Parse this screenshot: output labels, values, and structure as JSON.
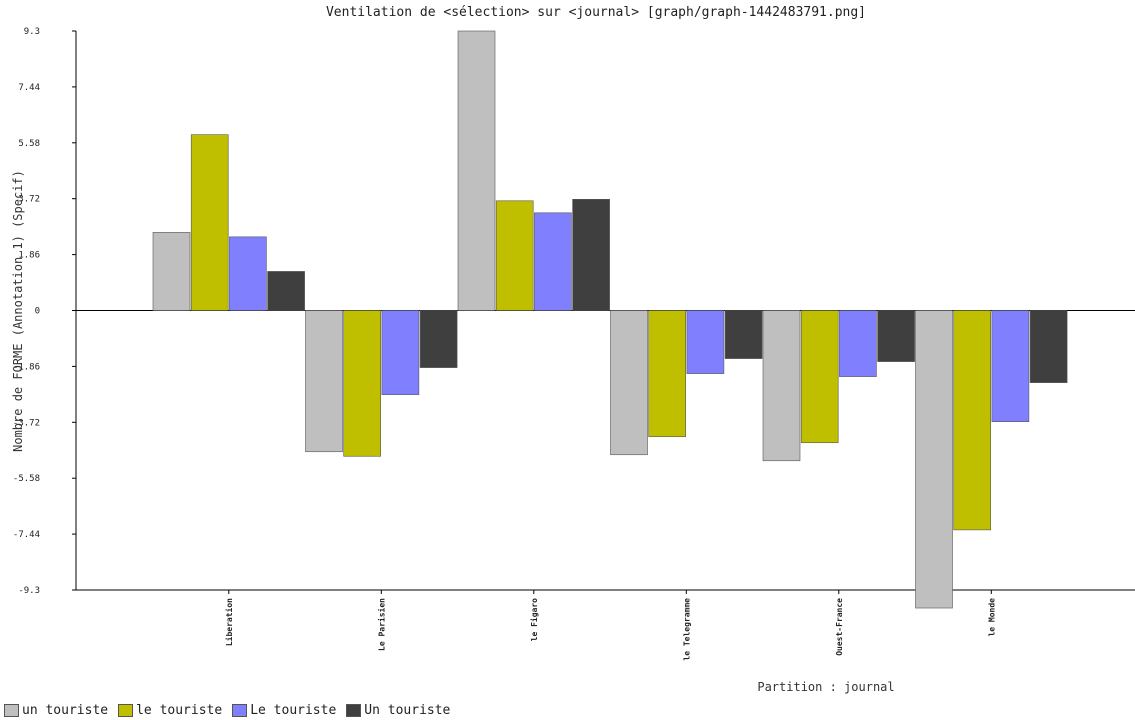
{
  "chart_data": {
    "type": "bar",
    "title": "Ventilation de <sélection> sur <journal> [graph/graph-1442483791.png]",
    "xlabel": "Partition : journal",
    "ylabel": "Nombre de FORME (Annotation 1) (Specif)",
    "ylim": [
      -9.3,
      9.3
    ],
    "yticks": [
      "9.3",
      "7.44",
      "5.58",
      "3.72",
      "1.86",
      "0",
      "-1.86",
      "-3.72",
      "-5.58",
      "-7.44",
      "-9.3"
    ],
    "categories": [
      "Liberation",
      "Le Parisien",
      "le Figaro",
      "le Telegramme",
      "Ouest-France",
      "le Monde"
    ],
    "series": [
      {
        "name": "un touriste",
        "color": "#bfbfbf",
        "values": [
          2.6,
          -4.7,
          9.3,
          -4.8,
          -5.0,
          -9.9
        ]
      },
      {
        "name": "le touriste",
        "color": "#bfbf00",
        "values": [
          5.85,
          -4.85,
          3.65,
          -4.2,
          -4.4,
          -7.3
        ]
      },
      {
        "name": "Le touriste",
        "color": "#8080ff",
        "values": [
          2.45,
          -2.8,
          3.25,
          -2.1,
          -2.2,
          -3.7
        ]
      },
      {
        "name": "Un touriste",
        "color": "#3f3f3f",
        "values": [
          1.3,
          -1.9,
          3.7,
          -1.6,
          -1.7,
          -2.4
        ]
      }
    ],
    "grid": false,
    "legend_position": "bottom-left"
  }
}
